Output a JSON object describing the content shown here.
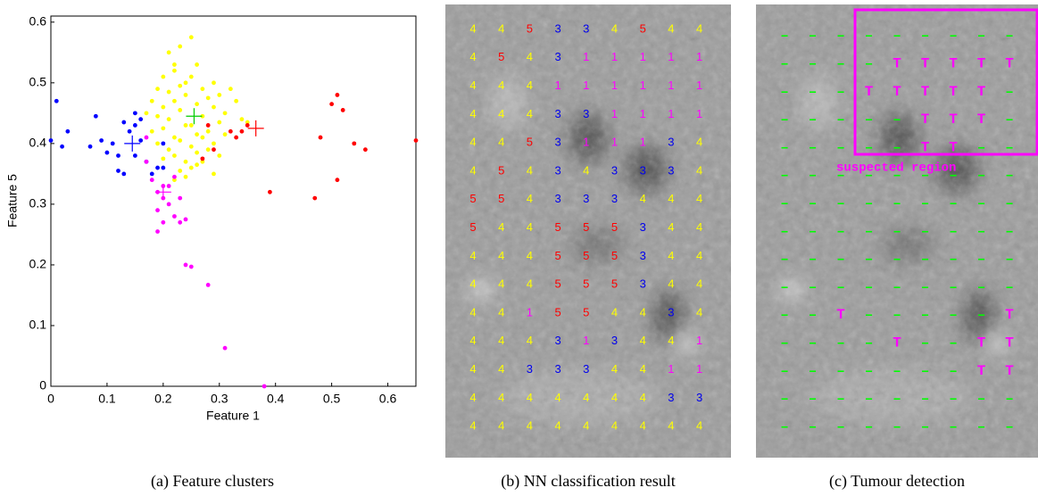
{
  "chart_data": {
    "type": "scatter",
    "xlabel": "Feature 1",
    "ylabel": "Feature 5",
    "xlim": [
      0,
      0.65
    ],
    "ylim": [
      0,
      0.61
    ],
    "xticks": [
      0,
      0.1,
      0.2,
      0.3,
      0.4,
      0.5,
      0.6
    ],
    "yticks": [
      0,
      0.1,
      0.2,
      0.3,
      0.4,
      0.5,
      0.6
    ],
    "series": [
      {
        "color": "#0000ff",
        "marker": "dot",
        "x": [
          0.01,
          0.0,
          0.02,
          0.03,
          0.07,
          0.08,
          0.09,
          0.1,
          0.11,
          0.12,
          0.13,
          0.13,
          0.14,
          0.15,
          0.15,
          0.16,
          0.16,
          0.17,
          0.18,
          0.19,
          0.2,
          0.2,
          0.15,
          0.12
        ],
        "y": [
          0.47,
          0.405,
          0.395,
          0.42,
          0.395,
          0.445,
          0.405,
          0.385,
          0.4,
          0.355,
          0.35,
          0.435,
          0.42,
          0.43,
          0.38,
          0.44,
          0.405,
          0.37,
          0.35,
          0.36,
          0.36,
          0.4,
          0.45,
          0.38
        ]
      },
      {
        "color": "#ffff00",
        "marker": "dot",
        "x": [
          0.21,
          0.22,
          0.23,
          0.25,
          0.2,
          0.22,
          0.24,
          0.26,
          0.19,
          0.21,
          0.23,
          0.25,
          0.27,
          0.29,
          0.18,
          0.2,
          0.22,
          0.24,
          0.26,
          0.28,
          0.3,
          0.32,
          0.17,
          0.19,
          0.21,
          0.23,
          0.25,
          0.27,
          0.29,
          0.31,
          0.33,
          0.18,
          0.2,
          0.22,
          0.24,
          0.26,
          0.28,
          0.3,
          0.34,
          0.19,
          0.21,
          0.23,
          0.25,
          0.27,
          0.29,
          0.31,
          0.2,
          0.22,
          0.24,
          0.26,
          0.28,
          0.23,
          0.25,
          0.27,
          0.3,
          0.22,
          0.24,
          0.26,
          0.29,
          0.35
        ],
        "y": [
          0.55,
          0.53,
          0.56,
          0.575,
          0.51,
          0.52,
          0.5,
          0.53,
          0.49,
          0.485,
          0.495,
          0.51,
          0.49,
          0.5,
          0.47,
          0.46,
          0.47,
          0.48,
          0.465,
          0.475,
          0.48,
          0.49,
          0.45,
          0.445,
          0.44,
          0.455,
          0.43,
          0.445,
          0.46,
          0.45,
          0.47,
          0.42,
          0.425,
          0.41,
          0.43,
          0.415,
          0.42,
          0.435,
          0.44,
          0.4,
          0.39,
          0.405,
          0.395,
          0.41,
          0.4,
          0.415,
          0.375,
          0.38,
          0.37,
          0.385,
          0.39,
          0.355,
          0.36,
          0.37,
          0.38,
          0.34,
          0.345,
          0.365,
          0.35,
          0.435
        ]
      },
      {
        "color": "#ff00ff",
        "marker": "dot",
        "x": [
          0.17,
          0.18,
          0.19,
          0.19,
          0.2,
          0.2,
          0.21,
          0.21,
          0.22,
          0.23,
          0.23,
          0.24,
          0.19,
          0.2,
          0.24,
          0.22,
          0.25,
          0.28,
          0.31,
          0.38,
          0.17
        ],
        "y": [
          0.37,
          0.34,
          0.32,
          0.29,
          0.33,
          0.31,
          0.3,
          0.33,
          0.28,
          0.31,
          0.27,
          0.275,
          0.255,
          0.27,
          0.2,
          0.345,
          0.197,
          0.167,
          0.063,
          0.0,
          0.41
        ]
      },
      {
        "color": "#ff0000",
        "marker": "dot",
        "x": [
          0.28,
          0.29,
          0.32,
          0.33,
          0.34,
          0.35,
          0.39,
          0.48,
          0.47,
          0.5,
          0.51,
          0.52,
          0.51,
          0.54,
          0.56,
          0.65,
          0.27
        ],
        "y": [
          0.43,
          0.39,
          0.42,
          0.41,
          0.42,
          0.43,
          0.32,
          0.41,
          0.31,
          0.465,
          0.48,
          0.455,
          0.34,
          0.4,
          0.39,
          0.405,
          0.375
        ]
      },
      {
        "color": "#0000ff",
        "marker": "plus",
        "x": [
          0.145
        ],
        "y": [
          0.4
        ]
      },
      {
        "color": "#00cc00",
        "marker": "plus",
        "x": [
          0.255
        ],
        "y": [
          0.445
        ]
      },
      {
        "color": "#ff00ff",
        "marker": "plus",
        "x": [
          0.2
        ],
        "y": [
          0.32
        ]
      },
      {
        "color": "#ff0000",
        "marker": "plus",
        "x": [
          0.365
        ],
        "y": [
          0.425
        ]
      }
    ]
  },
  "captions": [
    "(a) Feature clusters",
    "(b) NN classification result",
    "(c) Tumour detection"
  ],
  "classification": {
    "colors": {
      "1": "#ff00ff",
      "3": "#0000ee",
      "4": "#ffff00",
      "5": "#ff0000"
    },
    "rows": [
      [
        "4",
        "4",
        "5",
        "3",
        "3",
        "4",
        "5",
        "4",
        "4"
      ],
      [
        "4",
        "5",
        "4",
        "3",
        "1",
        "1",
        "1",
        "1",
        "1"
      ],
      [
        "4",
        "4",
        "4",
        "1",
        "1",
        "1",
        "1",
        "1",
        "1"
      ],
      [
        "4",
        "4",
        "4",
        "3",
        "3",
        "1",
        "1",
        "1",
        "1"
      ],
      [
        "4",
        "4",
        "5",
        "3",
        "1",
        "1",
        "1",
        "3",
        "4"
      ],
      [
        "4",
        "5",
        "4",
        "3",
        "4",
        "3",
        "3",
        "3",
        "4"
      ],
      [
        "5",
        "5",
        "4",
        "3",
        "3",
        "3",
        "4",
        "4",
        "4"
      ],
      [
        "5",
        "4",
        "4",
        "5",
        "5",
        "5",
        "3",
        "4",
        "4"
      ],
      [
        "4",
        "4",
        "4",
        "5",
        "5",
        "5",
        "3",
        "4",
        "4"
      ],
      [
        "4",
        "4",
        "4",
        "5",
        "5",
        "5",
        "3",
        "4",
        "4"
      ],
      [
        "4",
        "4",
        "1",
        "5",
        "5",
        "4",
        "4",
        "3",
        "4"
      ],
      [
        "4",
        "4",
        "4",
        "3",
        "1",
        "3",
        "4",
        "4",
        "1"
      ],
      [
        "4",
        "4",
        "3",
        "3",
        "3",
        "4",
        "4",
        "1",
        "1"
      ],
      [
        "4",
        "4",
        "4",
        "4",
        "4",
        "4",
        "4",
        "3",
        "3"
      ],
      [
        "4",
        "4",
        "4",
        "4",
        "4",
        "4",
        "4",
        "4",
        "4"
      ]
    ]
  },
  "detection": {
    "colors": {
      "–": "#00ff00",
      "T": "#ff00ff"
    },
    "region_label": "suspected region",
    "rows": [
      [
        "–",
        "–",
        "–",
        "–",
        "–",
        "–",
        "–",
        "–",
        "–"
      ],
      [
        "–",
        "–",
        "–",
        "–",
        "T",
        "T",
        "T",
        "T",
        "T"
      ],
      [
        "–",
        "–",
        "–",
        "T",
        "T",
        "T",
        "T",
        "T",
        "–"
      ],
      [
        "–",
        "–",
        "–",
        "–",
        "–",
        "T",
        "T",
        "T",
        "–"
      ],
      [
        "–",
        "–",
        "–",
        "–",
        "–",
        "T",
        "T",
        "–",
        "–"
      ],
      [
        "–",
        "–",
        "–",
        "–",
        "–",
        "–",
        "–",
        "–",
        "–"
      ],
      [
        "–",
        "–",
        "–",
        "–",
        "–",
        "–",
        "–",
        "–",
        "–"
      ],
      [
        "–",
        "–",
        "–",
        "–",
        "–",
        "–",
        "–",
        "–",
        "–"
      ],
      [
        "–",
        "–",
        "–",
        "–",
        "–",
        "–",
        "–",
        "–",
        "–"
      ],
      [
        "–",
        "–",
        "–",
        "–",
        "–",
        "–",
        "–",
        "–",
        "–"
      ],
      [
        "–",
        "–",
        "T",
        "–",
        "–",
        "–",
        "–",
        "–",
        "T"
      ],
      [
        "–",
        "–",
        "–",
        "–",
        "T",
        "–",
        "–",
        "T",
        "T"
      ],
      [
        "–",
        "–",
        "–",
        "–",
        "–",
        "–",
        "–",
        "T",
        "T"
      ],
      [
        "–",
        "–",
        "–",
        "–",
        "–",
        "–",
        "–",
        "–",
        "–"
      ],
      [
        "–",
        "–",
        "–",
        "–",
        "–",
        "–",
        "–",
        "–",
        "–"
      ]
    ]
  }
}
